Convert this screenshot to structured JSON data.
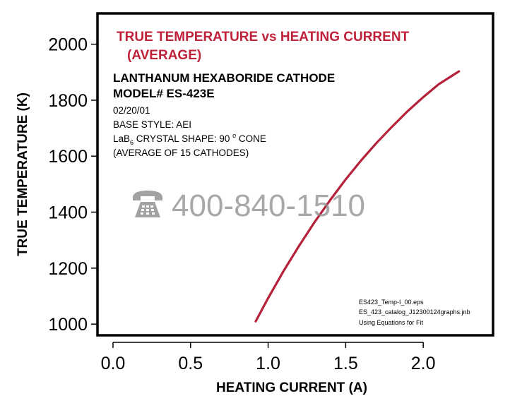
{
  "theme": {
    "curve_color": "#b5213a",
    "title_color": "#c0213a",
    "watermark_color": "#8c8c8c",
    "frame_color": "#000000"
  },
  "chart_data": {
    "type": "line",
    "title": "TRUE TEMPERATURE vs HEATING CURRENT",
    "title_line2": "(AVERAGE)",
    "xlabel": "HEATING CURRENT (A)",
    "ylabel": "TRUE TEMPERATURE (K)",
    "xlim": [
      -0.1,
      2.45
    ],
    "ylim": [
      960,
      2110
    ],
    "x_ticks": [
      0.0,
      0.5,
      1.0,
      1.5,
      2.0
    ],
    "x_tick_labels": [
      "0.0",
      "0.5",
      "1.0",
      "1.5",
      "2.0"
    ],
    "y_ticks": [
      1000,
      1200,
      1400,
      1600,
      1800,
      2000
    ],
    "y_tick_labels": [
      "1000",
      "1200",
      "1400",
      "1600",
      "1800",
      "2000"
    ],
    "grid": false,
    "series": [
      {
        "x": [
          0.92,
          1.0,
          1.1,
          1.2,
          1.3,
          1.4,
          1.5,
          1.6,
          1.7,
          1.8,
          1.9,
          2.0,
          2.1,
          2.23
        ],
        "y": [
          1010,
          1093,
          1190,
          1280,
          1365,
          1443,
          1517,
          1585,
          1648,
          1706,
          1761,
          1811,
          1857,
          1903
        ]
      }
    ]
  },
  "info": {
    "line1": "LANTHANUM HEXABORIDE CATHODE",
    "line2": "MODEL# ES-423E",
    "date": "02/20/01",
    "base_style": "BASE STYLE: AEI",
    "crystal_prefix": "LaB",
    "crystal_sub": "6",
    "crystal_text": " CRYSTAL SHAPE:  90 ",
    "crystal_deg": "o",
    "crystal_suffix": " CONE",
    "average": "(AVERAGE OF 15 CATHODES)"
  },
  "files": {
    "line1": "ES423_Temp-I_00.eps",
    "line2": "ES_423_catalog_J12300124graphs.jnb",
    "line3": "Using Equations for Fit"
  },
  "watermark": {
    "phone_icon": "telephone-icon",
    "text": "400-840-1510"
  }
}
